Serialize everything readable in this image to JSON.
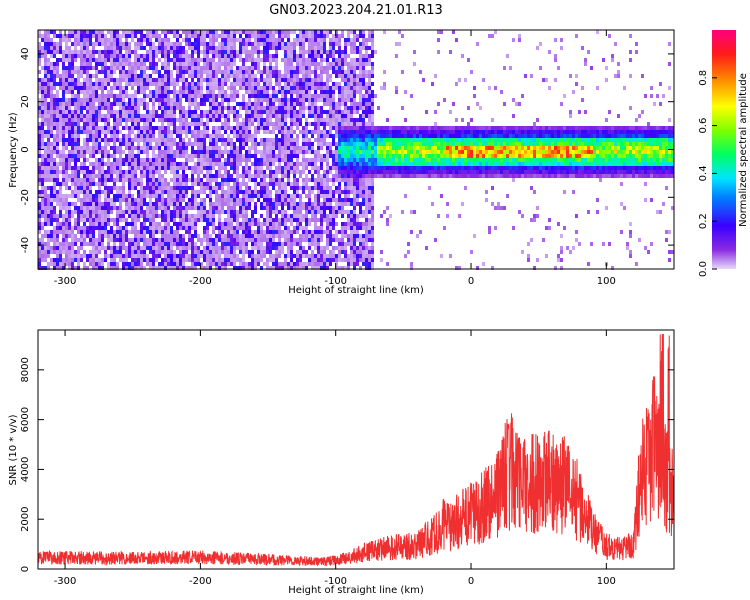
{
  "figure": {
    "title": "GN03.2023.204.21.01.R13"
  },
  "chart_data": [
    {
      "type": "heatmap",
      "xlabel": "Height of straight line (km)",
      "ylabel": "Frequency (Hz)",
      "xlim": [
        -320,
        150
      ],
      "ylim": [
        -50,
        50
      ],
      "x_ticks": [
        -300,
        -200,
        -100,
        0,
        100
      ],
      "y_ticks": [
        -40,
        -20,
        0,
        20,
        40
      ],
      "x_tick_labels": [
        "-300",
        "-200",
        "-100",
        "0",
        "100"
      ],
      "y_tick_labels": [
        "-40",
        "-20",
        "0",
        "20",
        "40"
      ],
      "colorbar": {
        "label": "Normalized spectral amplitude",
        "range": [
          0,
          1
        ],
        "ticks": [
          0.0,
          0.2,
          0.4,
          0.6,
          0.8
        ],
        "tick_labels": [
          "0.0",
          "0.2",
          "0.4",
          "0.6",
          "0.8"
        ],
        "colormap": "hsv"
      },
      "features": {
        "noise_region_x": [
          -320,
          -72
        ],
        "noise_amplitude": 0.2,
        "signal_band_x": [
          -100,
          150
        ],
        "signal_band_y": [
          -5,
          5
        ],
        "signal_peak_x": [
          0,
          80
        ],
        "signal_peak_amplitude": 0.85
      }
    },
    {
      "type": "line",
      "xlabel": "Height of straight line (km)",
      "ylabel": "SNR (10 * v/v)",
      "xlim": [
        -320,
        150
      ],
      "ylim": [
        0,
        9600
      ],
      "x_ticks": [
        -300,
        -200,
        -100,
        0,
        100
      ],
      "y_ticks": [
        0,
        2000,
        4000,
        6000,
        8000
      ],
      "x_tick_labels": [
        "-300",
        "-200",
        "-100",
        "0",
        "100"
      ],
      "y_tick_labels": [
        "0",
        "2000",
        "4000",
        "6000",
        "8000"
      ],
      "color": "#f03030",
      "series": [
        {
          "x": [
            -320,
            -300,
            -250,
            -200,
            -150,
            -110,
            -100,
            -90,
            -80,
            -70,
            -60,
            -50,
            -40,
            -30,
            -20,
            -10,
            0,
            10,
            20,
            25,
            30,
            35,
            40,
            50,
            60,
            70,
            80,
            90,
            100,
            110,
            120,
            125,
            130,
            135,
            140,
            145,
            150
          ],
          "y": [
            450,
            450,
            440,
            470,
            380,
            300,
            350,
            450,
            650,
            750,
            850,
            900,
            950,
            1300,
            1600,
            1900,
            2200,
            2600,
            3100,
            3700,
            3800,
            3500,
            3400,
            3500,
            3500,
            3400,
            2700,
            1500,
            900,
            800,
            1000,
            3500,
            4500,
            5000,
            4500,
            3500,
            3000
          ]
        }
      ],
      "noise_peaks": [
        {
          "x": -20,
          "y": 2800
        },
        {
          "x": 27,
          "y": 6200
        },
        {
          "x": 30,
          "y": 6500
        },
        {
          "x": 135,
          "y": 7800
        },
        {
          "x": 141,
          "y": 9500
        },
        {
          "x": 146,
          "y": 9400
        }
      ]
    }
  ]
}
